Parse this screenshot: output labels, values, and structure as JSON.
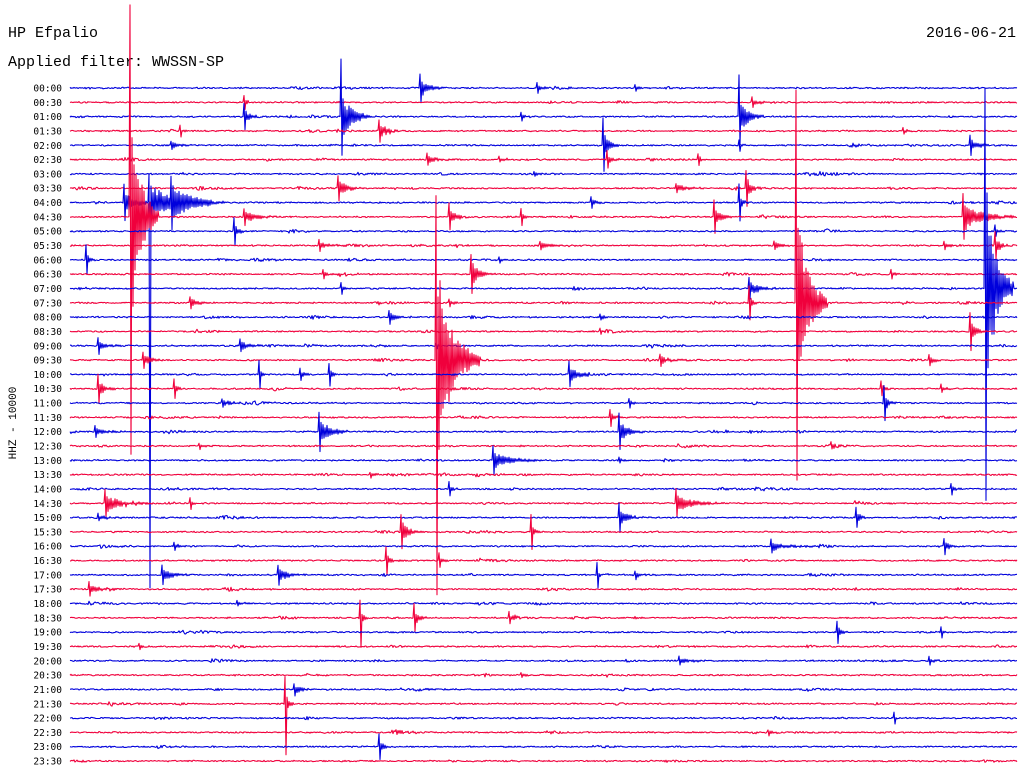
{
  "chart_data": {
    "type": "line",
    "title": "HP Efpalio",
    "date": "2016-06-21",
    "subtitle": "Applied filter: WWSSN-SP",
    "ylabel": "HHZ - 10000",
    "xlim": [
      0,
      30
    ],
    "grid": false,
    "colors": [
      "#0000dc",
      "#f0003c"
    ],
    "rows": [
      {
        "label": "00:00",
        "events": [
          {
            "t": 11.1,
            "amp": 1.0,
            "dur": 0.8
          },
          {
            "t": 14.8,
            "amp": 0.4,
            "dur": 0.5
          },
          {
            "t": 17.9,
            "amp": 0.2,
            "dur": 0.6
          }
        ]
      },
      {
        "label": "00:30",
        "events": [
          {
            "t": 5.5,
            "amp": 0.5,
            "dur": 0.3
          },
          {
            "t": 21.6,
            "amp": 0.4,
            "dur": 0.8
          }
        ]
      },
      {
        "label": "01:00",
        "events": [
          {
            "t": 5.5,
            "amp": 0.9,
            "dur": 0.5
          },
          {
            "t": 8.6,
            "amp": 4.0,
            "amp_down": 2.7,
            "dur": 1.0
          },
          {
            "t": 14.3,
            "amp": 0.3,
            "dur": 0.4
          },
          {
            "t": 21.2,
            "amp": 2.9,
            "amp_down": 2.0,
            "dur": 0.8
          }
        ]
      },
      {
        "label": "01:30",
        "events": [
          {
            "t": 3.5,
            "amp": 0.4,
            "dur": 0.3
          },
          {
            "t": 9.8,
            "amp": 0.8,
            "dur": 0.9
          },
          {
            "t": 26.4,
            "amp": 0.2,
            "dur": 0.5
          }
        ]
      },
      {
        "label": "02:00",
        "events": [
          {
            "t": 3.2,
            "amp": 0.3,
            "dur": 1.0
          },
          {
            "t": 16.9,
            "amp": 1.9,
            "amp_down": 1.8,
            "dur": 0.5
          },
          {
            "t": 21.2,
            "amp": 0.4,
            "dur": 0.3
          },
          {
            "t": 28.5,
            "amp": 0.7,
            "dur": 0.8
          }
        ]
      },
      {
        "label": "02:30",
        "events": [
          {
            "t": 11.3,
            "amp": 0.4,
            "dur": 1.0
          },
          {
            "t": 13.6,
            "amp": 0.2,
            "dur": 1.5
          },
          {
            "t": 17.0,
            "amp": 0.6,
            "dur": 0.5
          },
          {
            "t": 19.9,
            "amp": 0.4,
            "dur": 0.4
          }
        ]
      },
      {
        "label": "03:00",
        "events": [
          {
            "t": 14.7,
            "amp": 0.2,
            "dur": 0.6
          }
        ]
      },
      {
        "label": "03:30",
        "events": [
          {
            "t": 8.5,
            "amp": 0.9,
            "dur": 0.8
          },
          {
            "t": 19.2,
            "amp": 0.3,
            "dur": 1.5
          },
          {
            "t": 21.4,
            "amp": 1.2,
            "dur": 0.5
          }
        ]
      },
      {
        "label": "04:00",
        "events": [
          {
            "t": 1.7,
            "amp": 1.3,
            "dur": 1.0
          },
          {
            "t": 2.5,
            "amp": 2.1,
            "amp_down": 27.0,
            "dur": 2.0
          },
          {
            "t": 3.2,
            "amp": 1.5,
            "dur": 1.8
          },
          {
            "t": 16.5,
            "amp": 0.4,
            "dur": 0.6
          },
          {
            "t": 21.2,
            "amp": 1.3,
            "dur": 0.3
          }
        ]
      },
      {
        "label": "04:30",
        "events": [
          {
            "t": 1.9,
            "amp": 14.8,
            "amp_down": 16.6,
            "dur": 0.9
          },
          {
            "t": 5.5,
            "amp": 0.6,
            "dur": 1.2
          },
          {
            "t": 12.0,
            "amp": 1.0,
            "dur": 0.6
          },
          {
            "t": 14.3,
            "amp": 0.6,
            "dur": 0.4
          },
          {
            "t": 20.4,
            "amp": 1.2,
            "dur": 0.6
          },
          {
            "t": 28.3,
            "amp": 1.6,
            "dur": 1.7
          }
        ]
      },
      {
        "label": "05:00",
        "events": [
          {
            "t": 5.2,
            "amp": 1.0,
            "dur": 0.4
          },
          {
            "t": 29.3,
            "amp": 0.4,
            "dur": 0.3
          }
        ]
      },
      {
        "label": "05:30",
        "events": [
          {
            "t": 7.9,
            "amp": 0.4,
            "dur": 1.0
          },
          {
            "t": 14.9,
            "amp": 0.3,
            "dur": 1.5
          },
          {
            "t": 22.3,
            "amp": 0.3,
            "dur": 1.0
          },
          {
            "t": 27.7,
            "amp": 0.3,
            "dur": 0.6
          },
          {
            "t": 29.3,
            "amp": 1.0,
            "dur": 0.5
          }
        ]
      },
      {
        "label": "06:00",
        "events": [
          {
            "t": 0.5,
            "amp": 1.0,
            "dur": 0.3
          },
          {
            "t": 13.6,
            "amp": 0.2,
            "dur": 0.8
          }
        ]
      },
      {
        "label": "06:30",
        "events": [
          {
            "t": 8.0,
            "amp": 0.3,
            "dur": 0.6
          },
          {
            "t": 12.7,
            "amp": 1.4,
            "dur": 0.8
          },
          {
            "t": 26.0,
            "amp": 0.3,
            "dur": 0.5
          }
        ]
      },
      {
        "label": "07:00",
        "events": [
          {
            "t": 8.6,
            "amp": 0.4,
            "dur": 0.3
          },
          {
            "t": 21.5,
            "amp": 0.8,
            "dur": 1.0
          },
          {
            "t": 29.0,
            "amp": 14.0,
            "amp_down": 14.8,
            "dur": 0.9
          }
        ]
      },
      {
        "label": "07:30",
        "events": [
          {
            "t": 3.8,
            "amp": 0.4,
            "dur": 1.0
          },
          {
            "t": 12.0,
            "amp": 0.3,
            "dur": 0.6
          },
          {
            "t": 21.5,
            "amp": 1.2,
            "dur": 0.3
          },
          {
            "t": 23.0,
            "amp": 14.9,
            "amp_down": 12.4,
            "dur": 1.0
          }
        ]
      },
      {
        "label": "08:00",
        "events": [
          {
            "t": 10.1,
            "amp": 0.5,
            "dur": 0.8
          },
          {
            "t": 16.8,
            "amp": 0.2,
            "dur": 0.6
          }
        ]
      },
      {
        "label": "08:30",
        "events": [
          {
            "t": 16.8,
            "amp": 0.2,
            "dur": 0.6
          },
          {
            "t": 28.5,
            "amp": 1.3,
            "dur": 0.5
          }
        ]
      },
      {
        "label": "09:00",
        "events": [
          {
            "t": 0.9,
            "amp": 0.6,
            "dur": 0.8
          },
          {
            "t": 5.4,
            "amp": 0.5,
            "dur": 1.0
          },
          {
            "t": 11.6,
            "amp": 0.2,
            "dur": 0.5
          }
        ]
      },
      {
        "label": "09:30",
        "events": [
          {
            "t": 2.3,
            "amp": 0.6,
            "dur": 0.8
          },
          {
            "t": 11.6,
            "amp": 11.5,
            "amp_down": 16.4,
            "dur": 1.4
          },
          {
            "t": 18.7,
            "amp": 0.4,
            "dur": 1.0
          },
          {
            "t": 27.2,
            "amp": 0.4,
            "dur": 0.6
          }
        ]
      },
      {
        "label": "10:00",
        "events": [
          {
            "t": 6.0,
            "amp": 1.0,
            "dur": 0.2
          },
          {
            "t": 7.3,
            "amp": 0.4,
            "dur": 0.4
          },
          {
            "t": 8.2,
            "amp": 0.8,
            "dur": 0.3
          },
          {
            "t": 15.8,
            "amp": 0.9,
            "dur": 1.0
          }
        ]
      },
      {
        "label": "10:30",
        "events": [
          {
            "t": 0.9,
            "amp": 1.0,
            "dur": 0.6
          },
          {
            "t": 3.3,
            "amp": 0.7,
            "dur": 0.3
          },
          {
            "t": 25.7,
            "amp": 0.5,
            "dur": 0.4
          },
          {
            "t": 27.6,
            "amp": 0.3,
            "dur": 0.5
          }
        ]
      },
      {
        "label": "11:00",
        "events": [
          {
            "t": 4.8,
            "amp": 0.3,
            "dur": 1.2
          },
          {
            "t": 17.7,
            "amp": 0.3,
            "dur": 0.5
          },
          {
            "t": 25.8,
            "amp": 1.2,
            "dur": 0.4
          }
        ]
      },
      {
        "label": "11:30",
        "events": [
          {
            "t": 17.1,
            "amp": 0.6,
            "dur": 0.5
          }
        ]
      },
      {
        "label": "12:00",
        "events": [
          {
            "t": 0.8,
            "amp": 0.4,
            "dur": 1.0
          },
          {
            "t": 7.9,
            "amp": 1.4,
            "dur": 1.0
          },
          {
            "t": 17.4,
            "amp": 1.3,
            "dur": 0.8
          }
        ]
      },
      {
        "label": "12:30",
        "events": [
          {
            "t": 4.1,
            "amp": 0.2,
            "dur": 0.6
          },
          {
            "t": 24.1,
            "amp": 0.2,
            "dur": 0.8
          }
        ]
      },
      {
        "label": "13:00",
        "events": [
          {
            "t": 13.4,
            "amp": 1.0,
            "dur": 1.5
          },
          {
            "t": 17.4,
            "amp": 0.2,
            "dur": 0.6
          }
        ]
      },
      {
        "label": "13:30",
        "events": [
          {
            "t": 9.5,
            "amp": 0.2,
            "dur": 0.8
          }
        ]
      },
      {
        "label": "14:00",
        "events": [
          {
            "t": 12.0,
            "amp": 0.5,
            "dur": 0.3
          },
          {
            "t": 27.9,
            "amp": 0.4,
            "dur": 0.5
          }
        ]
      },
      {
        "label": "14:30",
        "events": [
          {
            "t": 1.1,
            "amp": 1.0,
            "dur": 1.5
          },
          {
            "t": 3.8,
            "amp": 0.4,
            "dur": 0.3
          },
          {
            "t": 19.2,
            "amp": 1.0,
            "dur": 1.5
          }
        ]
      },
      {
        "label": "15:00",
        "events": [
          {
            "t": 0.9,
            "amp": 0.3,
            "dur": 0.8
          },
          {
            "t": 17.4,
            "amp": 1.0,
            "dur": 0.8
          },
          {
            "t": 24.9,
            "amp": 0.7,
            "dur": 0.5
          }
        ]
      },
      {
        "label": "15:30",
        "events": [
          {
            "t": 10.5,
            "amp": 1.2,
            "dur": 0.8
          },
          {
            "t": 14.6,
            "amp": 1.2,
            "dur": 0.3
          }
        ]
      },
      {
        "label": "16:00",
        "events": [
          {
            "t": 3.3,
            "amp": 0.3,
            "dur": 0.6
          },
          {
            "t": 22.2,
            "amp": 0.5,
            "dur": 1.5
          },
          {
            "t": 27.7,
            "amp": 0.6,
            "dur": 0.5
          }
        ]
      },
      {
        "label": "16:30",
        "events": [
          {
            "t": 10.0,
            "amp": 1.0,
            "dur": 0.3
          },
          {
            "t": 11.7,
            "amp": 0.5,
            "dur": 0.4
          }
        ]
      },
      {
        "label": "17:00",
        "events": [
          {
            "t": 2.9,
            "amp": 0.7,
            "dur": 1.0
          },
          {
            "t": 6.6,
            "amp": 0.7,
            "dur": 1.0
          },
          {
            "t": 16.7,
            "amp": 0.9,
            "dur": 0.2
          },
          {
            "t": 17.9,
            "amp": 0.3,
            "dur": 0.5
          }
        ]
      },
      {
        "label": "17:30",
        "events": [
          {
            "t": 0.6,
            "amp": 0.5,
            "dur": 1.0
          }
        ]
      },
      {
        "label": "18:00",
        "events": [
          {
            "t": 5.3,
            "amp": 0.2,
            "dur": 0.6
          }
        ]
      },
      {
        "label": "18:30",
        "events": [
          {
            "t": 9.2,
            "amp": 1.2,
            "amp_down": 2.1,
            "dur": 0.3
          },
          {
            "t": 10.9,
            "amp": 1.0,
            "dur": 0.5
          },
          {
            "t": 13.9,
            "amp": 0.4,
            "dur": 1.0
          }
        ]
      },
      {
        "label": "19:00",
        "events": [
          {
            "t": 24.3,
            "amp": 0.8,
            "dur": 0.4
          },
          {
            "t": 27.6,
            "amp": 0.4,
            "dur": 0.3
          }
        ]
      },
      {
        "label": "19:30",
        "events": [
          {
            "t": 2.2,
            "amp": 0.2,
            "dur": 0.6
          }
        ]
      },
      {
        "label": "20:00",
        "events": [
          {
            "t": 19.3,
            "amp": 0.3,
            "dur": 1.5
          },
          {
            "t": 27.2,
            "amp": 0.3,
            "dur": 0.5
          }
        ]
      },
      {
        "label": "20:30",
        "events": [
          {
            "t": 14.3,
            "amp": 0.2,
            "dur": 0.8
          }
        ]
      },
      {
        "label": "21:00",
        "events": [
          {
            "t": 7.1,
            "amp": 0.4,
            "dur": 1.0
          }
        ]
      },
      {
        "label": "21:30",
        "events": [
          {
            "t": 6.8,
            "amp": 1.9,
            "amp_down": 3.6,
            "dur": 0.3
          }
        ]
      },
      {
        "label": "22:00",
        "events": [
          {
            "t": 26.1,
            "amp": 0.4,
            "dur": 0.1
          }
        ]
      },
      {
        "label": "22:30",
        "events": [
          {
            "t": 22.1,
            "amp": 0.2,
            "dur": 0.8
          }
        ]
      },
      {
        "label": "23:00",
        "events": [
          {
            "t": 9.8,
            "amp": 0.9,
            "dur": 0.4
          }
        ]
      },
      {
        "label": "23:30",
        "events": []
      }
    ]
  }
}
